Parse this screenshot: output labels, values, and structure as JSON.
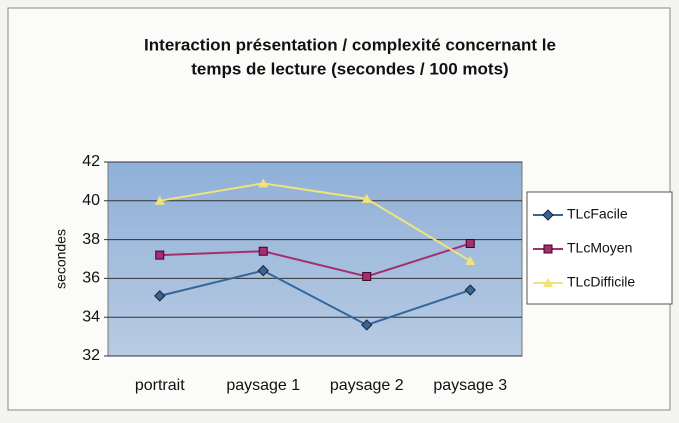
{
  "chart_data": {
    "type": "line",
    "title": [
      "Interaction présentation / complexité concernant le",
      "temps de lecture (secondes / 100 mots)"
    ],
    "y_label": "secondes",
    "categories": [
      "portrait",
      "paysage 1",
      "paysage 2",
      "paysage 3"
    ],
    "series": [
      {
        "name": "TLcFacile",
        "color": "#336699",
        "marker": "diamond",
        "values": [
          35.1,
          36.4,
          33.6,
          35.4
        ]
      },
      {
        "name": "TLcMoyen",
        "color": "#a3306e",
        "marker": "square",
        "values": [
          37.2,
          37.4,
          36.1,
          37.8
        ]
      },
      {
        "name": "TLcDifficile",
        "color": "#f2e27a",
        "marker": "triangle",
        "values": [
          40.0,
          40.9,
          40.1,
          36.9
        ]
      }
    ],
    "ylim": [
      32,
      42
    ],
    "yticks": [
      32,
      34,
      36,
      38,
      40,
      42
    ],
    "grid": true,
    "legend": "right"
  }
}
